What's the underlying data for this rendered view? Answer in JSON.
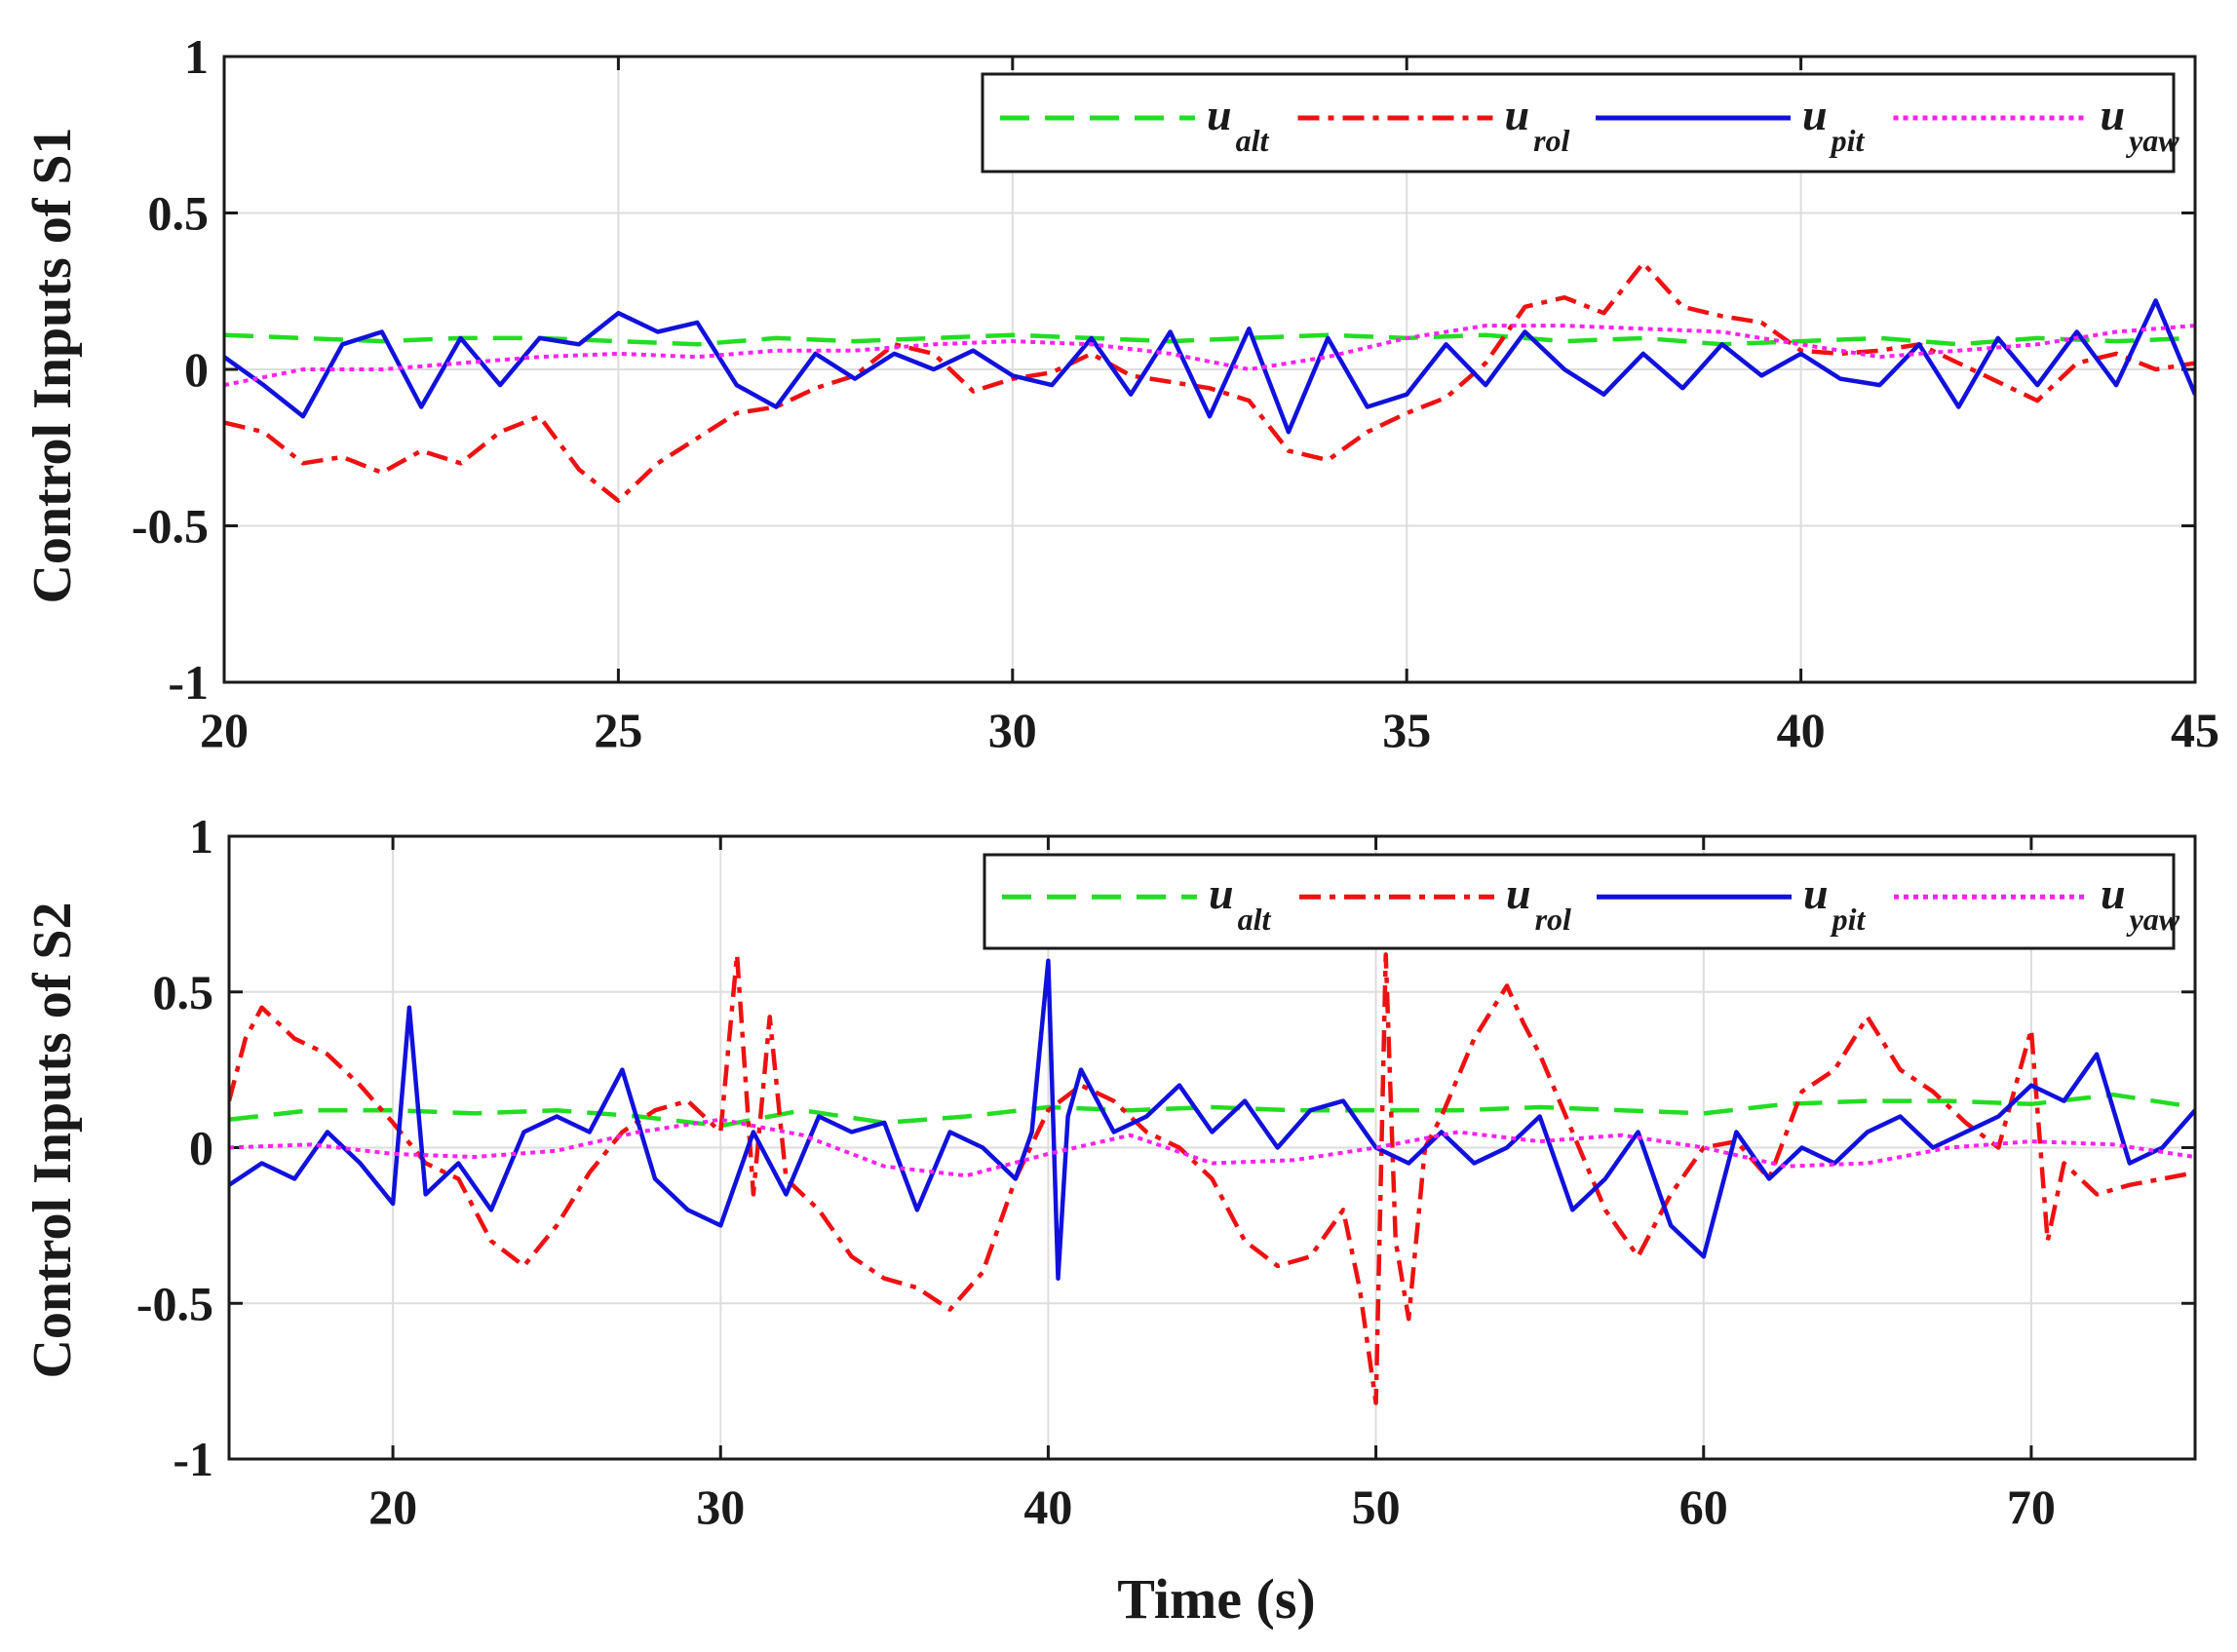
{
  "chart_data": [
    {
      "type": "line",
      "ylabel": "Control Inputs of S1",
      "xlabel": "",
      "xlim": [
        20,
        45
      ],
      "ylim": [
        -1,
        1
      ],
      "xticks": [
        20,
        25,
        30,
        35,
        40,
        45
      ],
      "yticks": [
        -1,
        -0.5,
        0,
        0.5,
        1
      ],
      "ytick_labels": [
        "-1",
        "-0.5",
        "0",
        "0.5",
        "1"
      ],
      "grid": true,
      "legend_position": "top-right",
      "series": [
        {
          "name": "u_alt",
          "label": "u",
          "sub": "alt",
          "color": "#22dd22",
          "style": "dashed",
          "x": [
            20,
            21,
            22,
            23,
            24,
            25,
            26,
            27,
            28,
            29,
            30,
            31,
            32,
            33,
            34,
            35,
            36,
            37,
            38,
            39,
            40,
            41,
            42,
            43,
            44,
            45
          ],
          "y": [
            0.11,
            0.1,
            0.09,
            0.1,
            0.1,
            0.09,
            0.08,
            0.1,
            0.09,
            0.1,
            0.11,
            0.1,
            0.09,
            0.1,
            0.11,
            0.1,
            0.11,
            0.09,
            0.1,
            0.08,
            0.09,
            0.1,
            0.08,
            0.1,
            0.09,
            0.1
          ]
        },
        {
          "name": "u_rol",
          "label": "u",
          "sub": "rol",
          "color": "#ee1111",
          "style": "dashdot",
          "x": [
            20,
            20.5,
            21,
            21.5,
            22,
            22.5,
            23,
            23.5,
            24,
            24.5,
            25,
            25.5,
            26,
            26.5,
            27,
            27.5,
            28,
            28.5,
            29,
            29.5,
            30,
            30.5,
            31,
            31.5,
            32,
            32.5,
            33,
            33.5,
            34,
            34.5,
            35,
            35.5,
            36,
            36.5,
            37,
            37.5,
            38,
            38.5,
            39,
            39.5,
            40,
            40.5,
            41,
            41.5,
            42,
            42.5,
            43,
            43.5,
            44,
            44.5,
            45
          ],
          "y": [
            -0.17,
            -0.2,
            -0.3,
            -0.28,
            -0.33,
            -0.26,
            -0.3,
            -0.2,
            -0.15,
            -0.32,
            -0.42,
            -0.3,
            -0.22,
            -0.14,
            -0.12,
            -0.06,
            -0.02,
            0.08,
            0.05,
            -0.07,
            -0.03,
            -0.01,
            0.05,
            -0.02,
            -0.04,
            -0.06,
            -0.1,
            -0.26,
            -0.29,
            -0.2,
            -0.14,
            -0.09,
            0.02,
            0.2,
            0.23,
            0.18,
            0.34,
            0.2,
            0.17,
            0.15,
            0.06,
            0.05,
            0.06,
            0.08,
            0.02,
            -0.04,
            -0.1,
            0.02,
            0.05,
            0.0,
            0.02
          ]
        },
        {
          "name": "u_pit",
          "label": "u",
          "sub": "pit",
          "color": "#1111dd",
          "style": "solid",
          "x": [
            20,
            20.5,
            21,
            21.5,
            22,
            22.5,
            23,
            23.5,
            24,
            24.5,
            25,
            25.5,
            26,
            26.5,
            27,
            27.5,
            28,
            28.5,
            29,
            29.5,
            30,
            30.5,
            31,
            31.5,
            32,
            32.5,
            33,
            33.5,
            34,
            34.5,
            35,
            35.5,
            36,
            36.5,
            37,
            37.5,
            38,
            38.5,
            39,
            39.5,
            40,
            40.5,
            41,
            41.5,
            42,
            42.5,
            43,
            43.5,
            44,
            44.5,
            45
          ],
          "y": [
            0.04,
            -0.05,
            -0.15,
            0.08,
            0.12,
            -0.12,
            0.1,
            -0.05,
            0.1,
            0.08,
            0.18,
            0.12,
            0.15,
            -0.05,
            -0.12,
            0.05,
            -0.03,
            0.05,
            0.0,
            0.06,
            -0.02,
            -0.05,
            0.1,
            -0.08,
            0.12,
            -0.15,
            0.13,
            -0.2,
            0.1,
            -0.12,
            -0.08,
            0.08,
            -0.05,
            0.12,
            0.0,
            -0.08,
            0.05,
            -0.06,
            0.08,
            -0.02,
            0.05,
            -0.03,
            -0.05,
            0.08,
            -0.12,
            0.1,
            -0.05,
            0.12,
            -0.05,
            0.22,
            -0.08
          ]
        },
        {
          "name": "u_yaw",
          "label": "u",
          "sub": "yaw",
          "color": "#ff22ee",
          "style": "dotted",
          "x": [
            20,
            21,
            22,
            23,
            24,
            25,
            26,
            27,
            28,
            29,
            30,
            31,
            32,
            33,
            34,
            35,
            36,
            37,
            38,
            39,
            40,
            41,
            42,
            43,
            44,
            45
          ],
          "y": [
            -0.05,
            0.0,
            0.0,
            0.02,
            0.04,
            0.05,
            0.04,
            0.06,
            0.06,
            0.08,
            0.09,
            0.08,
            0.05,
            0.0,
            0.04,
            0.1,
            0.14,
            0.14,
            0.13,
            0.12,
            0.08,
            0.04,
            0.06,
            0.08,
            0.12,
            0.14
          ]
        }
      ]
    },
    {
      "type": "line",
      "ylabel": "Control Inputs of S2",
      "xlabel": "Time (s)",
      "xlim": [
        15,
        75
      ],
      "ylim": [
        -1,
        1
      ],
      "xticks": [
        20,
        30,
        40,
        50,
        60,
        70
      ],
      "yticks": [
        -1,
        -0.5,
        0,
        0.5,
        1
      ],
      "ytick_labels": [
        "-1",
        "-0.5",
        "0",
        "0.5",
        "1"
      ],
      "grid": true,
      "legend_position": "top-right",
      "series": [
        {
          "name": "u_alt",
          "label": "u",
          "sub": "alt",
          "color": "#22dd22",
          "style": "dashed",
          "x": [
            15,
            17.5,
            20,
            22.5,
            25,
            27.5,
            30,
            32.5,
            35,
            37.5,
            40,
            42.5,
            45,
            47.5,
            50,
            52.5,
            55,
            57.5,
            60,
            62.5,
            65,
            67.5,
            70,
            72.5,
            75
          ],
          "y": [
            0.09,
            0.12,
            0.12,
            0.11,
            0.12,
            0.1,
            0.07,
            0.12,
            0.08,
            0.1,
            0.13,
            0.12,
            0.13,
            0.12,
            0.12,
            0.12,
            0.13,
            0.12,
            0.11,
            0.14,
            0.15,
            0.15,
            0.14,
            0.17,
            0.13
          ]
        },
        {
          "name": "u_rol",
          "label": "u",
          "sub": "rol",
          "color": "#ee1111",
          "style": "dashdot",
          "x": [
            15,
            15.5,
            16,
            17,
            18,
            19,
            20,
            21,
            22,
            23,
            24,
            25,
            26,
            27,
            28,
            29,
            30,
            30.5,
            31,
            31.5,
            32,
            33,
            34,
            35,
            36,
            37,
            38,
            39,
            40,
            41,
            42,
            43,
            44,
            45,
            46,
            47,
            48,
            49,
            49.5,
            50,
            50.3,
            50.6,
            51,
            51.5,
            52,
            53,
            54,
            54.5,
            55,
            56,
            57,
            58,
            59,
            60,
            61,
            62,
            63,
            64,
            65,
            66,
            67,
            68,
            69,
            70,
            70.5,
            71,
            72,
            73,
            74,
            75
          ],
          "y": [
            0.15,
            0.35,
            0.45,
            0.35,
            0.3,
            0.2,
            0.08,
            -0.05,
            -0.1,
            -0.3,
            -0.38,
            -0.25,
            -0.08,
            0.05,
            0.12,
            0.15,
            0.05,
            0.62,
            -0.15,
            0.42,
            -0.1,
            -0.2,
            -0.35,
            -0.42,
            -0.45,
            -0.52,
            -0.4,
            -0.1,
            0.12,
            0.2,
            0.15,
            0.05,
            0.0,
            -0.1,
            -0.3,
            -0.38,
            -0.35,
            -0.2,
            -0.45,
            -0.82,
            0.62,
            -0.3,
            -0.55,
            0.0,
            0.1,
            0.35,
            0.52,
            0.4,
            0.3,
            0.05,
            -0.2,
            -0.35,
            -0.15,
            0.0,
            0.02,
            -0.1,
            0.18,
            0.25,
            0.42,
            0.25,
            0.18,
            0.08,
            0.0,
            0.38,
            -0.3,
            -0.05,
            -0.15,
            -0.12,
            -0.1,
            -0.08
          ]
        },
        {
          "name": "u_pit",
          "label": "u",
          "sub": "pit",
          "color": "#1111dd",
          "style": "solid",
          "x": [
            15,
            16,
            17,
            18,
            19,
            20,
            20.5,
            21,
            22,
            23,
            24,
            25,
            26,
            27,
            28,
            29,
            30,
            31,
            32,
            33,
            34,
            35,
            36,
            37,
            38,
            39,
            39.5,
            40,
            40.3,
            40.6,
            41,
            42,
            43,
            44,
            45,
            46,
            47,
            48,
            49,
            50,
            51,
            52,
            53,
            54,
            55,
            56,
            57,
            58,
            59,
            60,
            61,
            62,
            63,
            64,
            65,
            66,
            67,
            68,
            69,
            70,
            71,
            72,
            73,
            74,
            75
          ],
          "y": [
            -0.12,
            -0.05,
            -0.1,
            0.05,
            -0.05,
            -0.18,
            0.45,
            -0.15,
            -0.05,
            -0.2,
            0.05,
            0.1,
            0.05,
            0.25,
            -0.1,
            -0.2,
            -0.25,
            0.05,
            -0.15,
            0.1,
            0.05,
            0.08,
            -0.2,
            0.05,
            0.0,
            -0.1,
            0.05,
            0.6,
            -0.42,
            0.1,
            0.25,
            0.05,
            0.1,
            0.2,
            0.05,
            0.15,
            0.0,
            0.12,
            0.15,
            0.0,
            -0.05,
            0.05,
            -0.05,
            0.0,
            0.1,
            -0.2,
            -0.1,
            0.05,
            -0.25,
            -0.35,
            0.05,
            -0.1,
            0.0,
            -0.05,
            0.05,
            0.1,
            0.0,
            0.05,
            0.1,
            0.2,
            0.15,
            0.3,
            -0.05,
            0.0,
            0.12
          ]
        },
        {
          "name": "u_yaw",
          "label": "u",
          "sub": "yaw",
          "color": "#ff22ee",
          "style": "dotted",
          "x": [
            15,
            17.5,
            20,
            22.5,
            25,
            27.5,
            30,
            32.5,
            35,
            37.5,
            40,
            42.5,
            45,
            47.5,
            50,
            52.5,
            55,
            57.5,
            60,
            62.5,
            65,
            67.5,
            70,
            72.5,
            75
          ],
          "y": [
            0.0,
            0.01,
            -0.02,
            -0.03,
            -0.01,
            0.05,
            0.09,
            0.04,
            -0.06,
            -0.09,
            -0.02,
            0.04,
            -0.05,
            -0.04,
            0.0,
            0.05,
            0.02,
            0.04,
            0.0,
            -0.06,
            -0.05,
            0.0,
            0.02,
            0.01,
            -0.03
          ]
        }
      ]
    }
  ]
}
